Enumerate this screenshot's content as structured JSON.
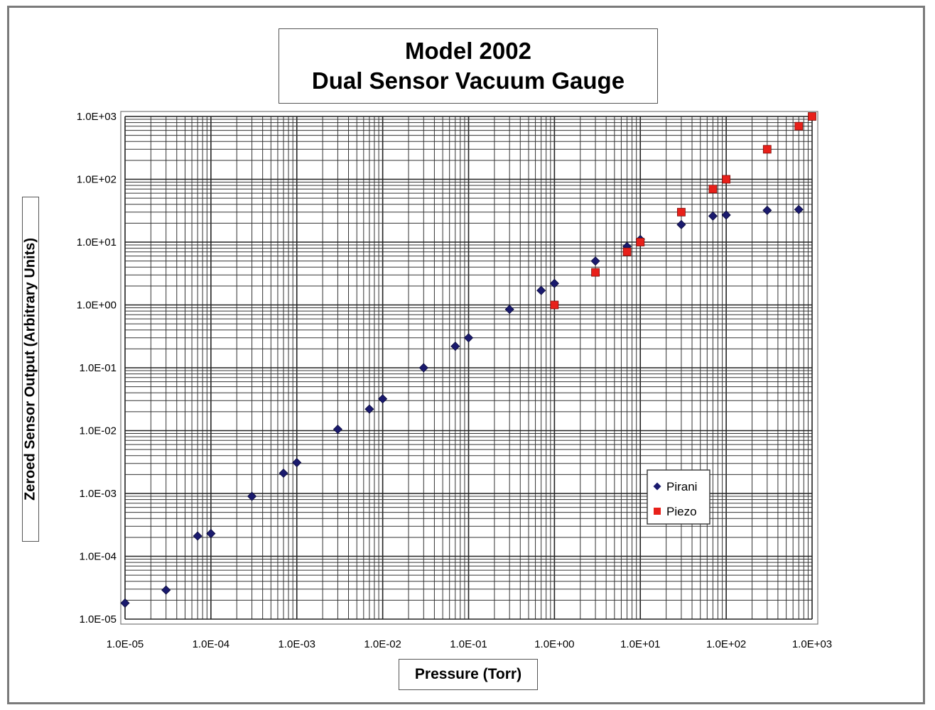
{
  "chart_data": {
    "type": "scatter",
    "title": [
      "Model 2002",
      "Dual Sensor Vacuum Gauge"
    ],
    "xlabel": "Pressure (Torr)",
    "ylabel": "Zeroed Sensor Output (Arbitrary Units)",
    "x_scale": "log",
    "y_scale": "log",
    "xlim": [
      1e-05,
      1000.0
    ],
    "ylim": [
      1e-05,
      1000.0
    ],
    "x_ticks": [
      "1.0E-05",
      "1.0E-04",
      "1.0E-03",
      "1.0E-02",
      "1.0E-01",
      "1.0E+00",
      "1.0E+01",
      "1.0E+02",
      "1.0E+03"
    ],
    "y_ticks": [
      "1.0E+03",
      "1.0E+02",
      "1.0E+01",
      "1.0E+00",
      "1.0E-01",
      "1.0E-02",
      "1.0E-03",
      "1.0E-04",
      "1.0E-05"
    ],
    "grid": true,
    "legend_position": "lower-right",
    "series": [
      {
        "name": "Pirani",
        "color": "#1a1a6e",
        "marker": "diamond",
        "points": [
          [
            1e-05,
            1.8e-05
          ],
          [
            3e-05,
            2.9e-05
          ],
          [
            7e-05,
            0.00021
          ],
          [
            0.0001,
            0.00023
          ],
          [
            0.0003,
            0.0009
          ],
          [
            0.0007,
            0.0021
          ],
          [
            0.001,
            0.0031
          ],
          [
            0.003,
            0.0105
          ],
          [
            0.007,
            0.022
          ],
          [
            0.01,
            0.032
          ],
          [
            0.03,
            0.1
          ],
          [
            0.07,
            0.22
          ],
          [
            0.1,
            0.3
          ],
          [
            0.3,
            0.85
          ],
          [
            0.7,
            1.7
          ],
          [
            1.0,
            2.2
          ],
          [
            3.0,
            5.0
          ],
          [
            7.0,
            8.5
          ],
          [
            10.0,
            11.0
          ],
          [
            30.0,
            19.0
          ],
          [
            70.0,
            26.0
          ],
          [
            100.0,
            27.0
          ],
          [
            300.0,
            32.0
          ],
          [
            700.0,
            33.0
          ]
        ]
      },
      {
        "name": "Piezo",
        "color": "#e8201a",
        "marker": "square",
        "points": [
          [
            1.0,
            1.0
          ],
          [
            3.0,
            3.3
          ],
          [
            7.0,
            7.0
          ],
          [
            10.0,
            10.0
          ],
          [
            30.0,
            30.0
          ],
          [
            70.0,
            70.0
          ],
          [
            100.0,
            100.0
          ],
          [
            300.0,
            300.0
          ],
          [
            700.0,
            700.0
          ],
          [
            1000.0,
            1000.0
          ]
        ]
      }
    ]
  }
}
